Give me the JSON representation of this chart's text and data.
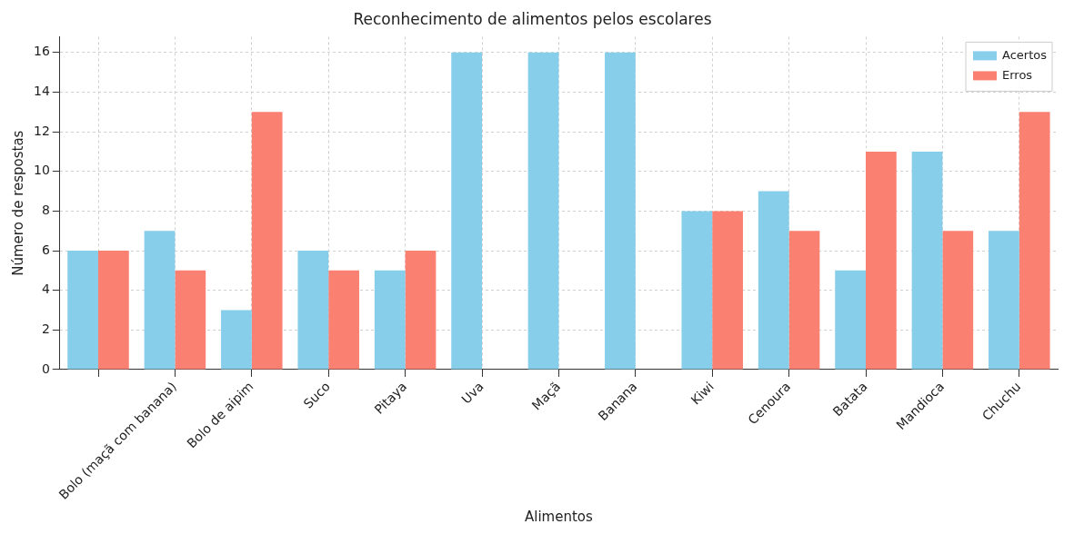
{
  "chart_data": {
    "type": "bar",
    "title": "Reconhecimento de alimentos pelos escolares",
    "xlabel": "Alimentos",
    "ylabel": "Número de respostas",
    "categories": [
      null,
      "Bolo (maçã com banana)",
      "Bolo de aipim",
      "Suco",
      "Pitaya",
      "Uva",
      "Maçã",
      "Banana",
      "Kiwi",
      "Cenoura",
      "Batata",
      "Mandioca",
      "Chuchu"
    ],
    "series": [
      {
        "name": "Acertos",
        "color": "#87ceeb",
        "values": [
          6,
          7,
          3,
          6,
          5,
          16,
          16,
          16,
          8,
          9,
          5,
          11,
          7
        ]
      },
      {
        "name": "Erros",
        "color": "#fa8072",
        "values": [
          6,
          5,
          13,
          5,
          6,
          0,
          0,
          0,
          8,
          7,
          11,
          7,
          13
        ]
      }
    ],
    "ylim": [
      0,
      16.8
    ],
    "yticks": [
      0,
      2,
      4,
      6,
      8,
      10,
      12,
      14,
      16
    ],
    "grid": true,
    "legend": "top right"
  }
}
